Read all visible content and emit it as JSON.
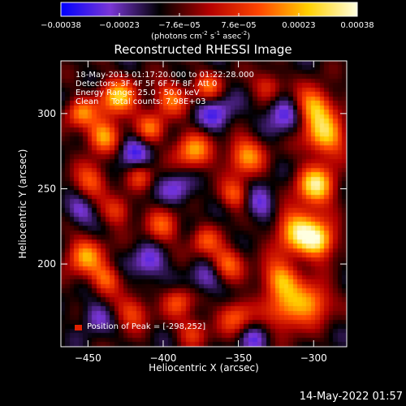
{
  "chart_data": {
    "type": "heatmap",
    "title": "Reconstructed RHESSI Image",
    "xlabel": "Heliocentric X (arcsec)",
    "ylabel": "Heliocentric Y (arcsec)",
    "xlim": [
      -468,
      -278
    ],
    "ylim": [
      145,
      335
    ],
    "xticks": [
      {
        "value": -450,
        "label": "-450"
      },
      {
        "value": -400,
        "label": "-400"
      },
      {
        "value": -350,
        "label": "-350"
      },
      {
        "value": -300,
        "label": "-300"
      }
    ],
    "yticks": [
      {
        "value": 200,
        "label": "200"
      },
      {
        "value": 250,
        "label": "250"
      },
      {
        "value": 300,
        "label": "300"
      }
    ],
    "colorbar": {
      "range": [
        -0.00038,
        0.00038
      ],
      "ticks": [
        {
          "value": -0.00038,
          "label": "-0.00038"
        },
        {
          "value": -0.00023,
          "label": "-0.00023"
        },
        {
          "value": -7.6e-05,
          "label": "-7.6e-05"
        },
        {
          "value": 7.6e-05,
          "label": "7.6e-05"
        },
        {
          "value": 0.00023,
          "label": "0.00023"
        },
        {
          "value": 0.00038,
          "label": "0.00038"
        }
      ],
      "units_prefix": "(photons cm",
      "units_sup1": "-2",
      "units_mid1": " s",
      "units_sup2": "-1",
      "units_mid2": " asec",
      "units_sup3": "-2",
      "units_suffix": ")",
      "colors": [
        "#0000ff",
        "#7a36d6",
        "#000000",
        "#b30000",
        "#ff4500",
        "#ffd000",
        "#ffffe0"
      ]
    },
    "annotations": {
      "time": "18-May-2013 01:17:20.000 to 01:22:28.000",
      "detectors": "Detectors: 3F 4F 5F 6F 7F 8F, Att 0",
      "energy": "Energy Range: 25.0 - 50.0 keV",
      "clean": "Clean     Total counts: 7.98E+03",
      "peak": "Position of Peak = [-298,252]"
    },
    "peak": {
      "x": -298,
      "y": 252
    },
    "hotspots": [
      {
        "x": -298,
        "y": 252,
        "v": 1.0,
        "s": 9
      },
      {
        "x": -292,
        "y": 285,
        "v": 0.85,
        "s": 10
      },
      {
        "x": -300,
        "y": 305,
        "v": 0.8,
        "s": 9
      },
      {
        "x": -310,
        "y": 222,
        "v": 0.9,
        "s": 11
      },
      {
        "x": -296,
        "y": 215,
        "v": 0.8,
        "s": 8
      },
      {
        "x": -322,
        "y": 190,
        "v": 0.75,
        "s": 9
      },
      {
        "x": -318,
        "y": 168,
        "v": 0.6,
        "s": 10
      },
      {
        "x": -300,
        "y": 175,
        "v": 0.65,
        "s": 9
      },
      {
        "x": -345,
        "y": 272,
        "v": 0.7,
        "s": 9
      },
      {
        "x": -352,
        "y": 246,
        "v": 0.55,
        "s": 7
      },
      {
        "x": -358,
        "y": 200,
        "v": 0.6,
        "s": 8
      },
      {
        "x": -352,
        "y": 165,
        "v": 0.55,
        "s": 8
      },
      {
        "x": -380,
        "y": 275,
        "v": 0.7,
        "s": 9
      },
      {
        "x": -395,
        "y": 310,
        "v": 0.6,
        "s": 8
      },
      {
        "x": -408,
        "y": 290,
        "v": 0.55,
        "s": 7
      },
      {
        "x": -400,
        "y": 225,
        "v": 0.5,
        "s": 8
      },
      {
        "x": -390,
        "y": 175,
        "v": 0.5,
        "s": 7
      },
      {
        "x": -430,
        "y": 310,
        "v": 0.85,
        "s": 9
      },
      {
        "x": -440,
        "y": 285,
        "v": 0.75,
        "s": 8
      },
      {
        "x": -455,
        "y": 300,
        "v": 0.6,
        "s": 7
      },
      {
        "x": -448,
        "y": 255,
        "v": 0.55,
        "s": 8
      },
      {
        "x": -452,
        "y": 205,
        "v": 0.7,
        "s": 9
      },
      {
        "x": -438,
        "y": 190,
        "v": 0.55,
        "s": 7
      },
      {
        "x": -430,
        "y": 235,
        "v": 0.45,
        "s": 7
      },
      {
        "x": -420,
        "y": 168,
        "v": 0.5,
        "s": 8
      },
      {
        "x": -370,
        "y": 318,
        "v": 0.55,
        "s": 7
      },
      {
        "x": -372,
        "y": 215,
        "v": 0.45,
        "s": 7
      },
      {
        "x": -330,
        "y": 318,
        "v": 0.45,
        "s": 7
      },
      {
        "x": -415,
        "y": 258,
        "v": 0.4,
        "s": 6
      },
      {
        "x": -380,
        "y": 155,
        "v": 0.45,
        "s": 7
      }
    ],
    "coldspots": [
      {
        "x": -320,
        "y": 300,
        "v": -0.5,
        "s": 9
      },
      {
        "x": -335,
        "y": 240,
        "v": -0.45,
        "s": 8
      },
      {
        "x": -365,
        "y": 300,
        "v": -0.45,
        "s": 9
      },
      {
        "x": -420,
        "y": 275,
        "v": -0.45,
        "s": 8
      },
      {
        "x": -410,
        "y": 200,
        "v": -0.45,
        "s": 8
      },
      {
        "x": -370,
        "y": 190,
        "v": -0.4,
        "s": 8
      },
      {
        "x": -455,
        "y": 235,
        "v": -0.4,
        "s": 7
      },
      {
        "x": -445,
        "y": 165,
        "v": -0.35,
        "s": 7
      },
      {
        "x": -340,
        "y": 150,
        "v": -0.35,
        "s": 7
      },
      {
        "x": -390,
        "y": 250,
        "v": -0.4,
        "s": 8
      }
    ]
  },
  "footer": {
    "timestamp": "14-May-2022 01:57"
  }
}
